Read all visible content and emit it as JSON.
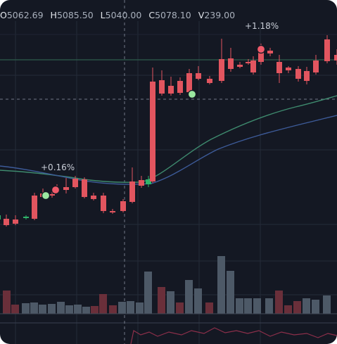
{
  "ohlcv": [
    {
      "key": "O",
      "value": "5062.69"
    },
    {
      "key": "H",
      "value": "5085.50"
    },
    {
      "key": "L",
      "value": "5040.00"
    },
    {
      "key": "C",
      "value": "5078.10"
    },
    {
      "key": "V",
      "value": "239.00"
    }
  ],
  "annotations": [
    {
      "text": "+0.16%"
    },
    {
      "text": "+1.18%"
    }
  ],
  "colors": {
    "background": "#141823",
    "up": "#2fb36a",
    "down": "#e2555f",
    "grid": "#252b38",
    "ma_fast": "#3e8a6e",
    "ma_slow": "#3d5b99",
    "volume_up": "#4d5967",
    "volume_down": "#6a2f3a",
    "crosshair": "#9aa3b2",
    "marker_buy": "#9be7a0",
    "marker_sell": "#f05a6a"
  }
}
